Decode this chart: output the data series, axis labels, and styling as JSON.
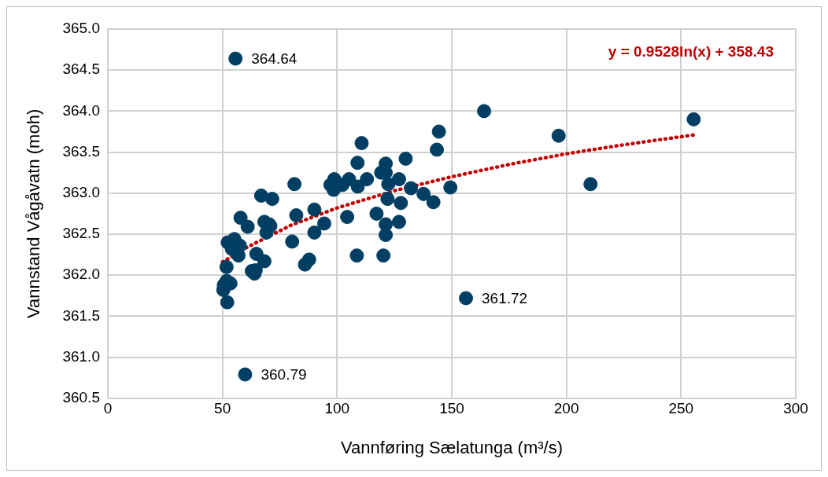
{
  "chart_data": {
    "type": "scatter",
    "xlabel": "Vannføring Sælatunga (m³/s)",
    "ylabel": "Vannstand Vågåvatn (moh)",
    "xlim": [
      0,
      300
    ],
    "xticks": [
      0,
      50,
      100,
      150,
      200,
      250,
      300
    ],
    "ylim": [
      360.5,
      365
    ],
    "yticks": [
      360.5,
      {
        "value": 361,
        "label": "361.0"
      },
      361.5,
      {
        "value": 362,
        "label": "362.0"
      },
      362.5,
      {
        "value": 363,
        "label": "363.0"
      },
      363.5,
      {
        "value": 364,
        "label": "364.0"
      },
      364.5,
      {
        "value": 365,
        "label": "365.0"
      }
    ],
    "grid": true,
    "legend": false,
    "marker": "circle",
    "series": [
      {
        "color": "#003f63",
        "x": [
          55.7,
          59.9,
          156.2,
          164.1,
          196.6,
          255.5,
          210.5,
          149.4,
          144.4,
          143.5,
          129.9,
          110.7,
          108.9,
          121.2,
          119.2,
          121.2,
          113.0,
          127.0,
          105.2,
          98.8,
          97.1,
          102.3,
          98.5,
          109.0,
          122.3,
          132.2,
          137.7,
          142.0,
          122.0,
          127.8,
          117.2,
          104.4,
          94.4,
          121.2,
          127.0,
          121.2,
          108.6,
          120.2,
          81.4,
          66.9,
          71.7,
          90.1,
          82.2,
          57.9,
          61.0,
          68.3,
          70.4,
          69.2,
          70.9,
          90.1,
          80.4,
          52.3,
          55.2,
          57.6,
          54.1,
          57.0,
          64.8,
          68.3,
          87.8,
          86.0,
          62.8,
          64.5,
          64.0,
          51.8,
          50.6,
          51.8,
          53.5,
          50.4,
          52.1
        ],
        "values": [
          364.64,
          360.79,
          361.72,
          364.0,
          363.7,
          363.9,
          363.11,
          363.07,
          363.75,
          363.53,
          363.42,
          363.61,
          363.37,
          363.36,
          363.25,
          363.25,
          363.17,
          363.17,
          363.17,
          363.17,
          363.1,
          363.1,
          363.04,
          363.08,
          363.11,
          363.06,
          362.99,
          362.89,
          362.93,
          362.88,
          362.75,
          362.71,
          362.63,
          362.62,
          362.65,
          362.49,
          362.24,
          362.24,
          363.11,
          362.97,
          362.93,
          362.8,
          362.73,
          362.7,
          362.59,
          362.65,
          362.62,
          362.52,
          362.6,
          362.52,
          362.41,
          362.4,
          362.44,
          362.36,
          362.32,
          362.24,
          362.26,
          362.17,
          362.19,
          362.13,
          362.05,
          362.06,
          362.02,
          362.1,
          361.88,
          361.93,
          361.9,
          361.82,
          361.67
        ]
      },
      {
        "type": "line",
        "color": "#c00000",
        "line_style": "dotted",
        "marker": "none",
        "x": [
          50,
          60,
          80,
          100,
          125,
          150,
          175,
          200,
          225,
          255.5
        ],
        "values": [
          362.16,
          362.33,
          362.61,
          362.82,
          363.03,
          363.2,
          363.35,
          363.48,
          363.59,
          363.71
        ]
      }
    ],
    "annotations": [
      "y = 0.9528ln(x) + 358.43",
      {
        "text": "364.64",
        "x": 55.7,
        "y": 364.64
      },
      {
        "text": "360.79",
        "x": 59.9,
        "y": 360.79
      },
      {
        "text": "361.72",
        "x": 156.2,
        "y": 361.72
      }
    ]
  }
}
